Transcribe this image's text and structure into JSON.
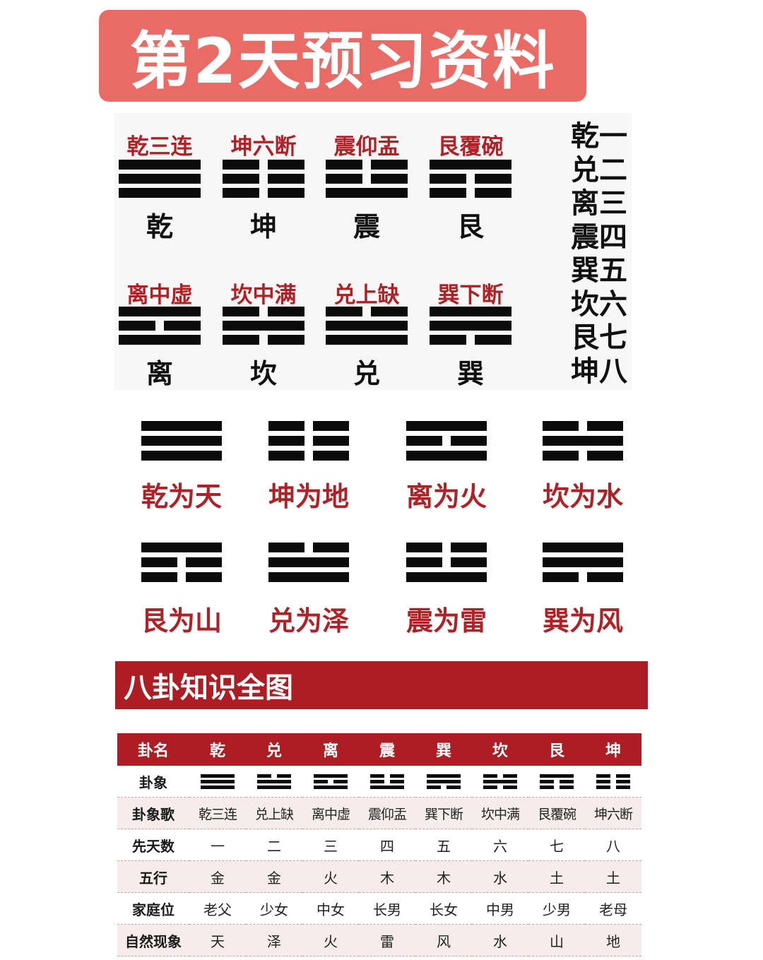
{
  "title": "第2天预习资料",
  "row1": [
    {
      "song": "乾三连",
      "name": "乾",
      "lines": [
        1,
        1,
        1
      ]
    },
    {
      "song": "坤六断",
      "name": "坤",
      "lines": [
        0,
        0,
        0
      ]
    },
    {
      "song": "震仰盂",
      "name": "震",
      "lines": [
        0,
        0,
        1
      ]
    },
    {
      "song": "艮覆碗",
      "name": "艮",
      "lines": [
        1,
        0,
        0
      ]
    }
  ],
  "row2": [
    {
      "song": "离中虚",
      "name": "离",
      "lines": [
        1,
        0,
        1
      ]
    },
    {
      "song": "坎中满",
      "name": "坎",
      "lines": [
        0,
        1,
        0
      ]
    },
    {
      "song": "兑上缺",
      "name": "兑",
      "lines": [
        0,
        1,
        1
      ]
    },
    {
      "song": "巽下断",
      "name": "巽",
      "lines": [
        1,
        1,
        0
      ]
    }
  ],
  "numbers": [
    "乾一",
    "兑二",
    "离三",
    "震四",
    "巽五",
    "坎六",
    "艮七",
    "坤八"
  ],
  "nature_row1": [
    {
      "label": "乾为天",
      "lines": [
        1,
        1,
        1
      ]
    },
    {
      "label": "坤为地",
      "lines": [
        0,
        0,
        0
      ]
    },
    {
      "label": "离为火",
      "lines": [
        1,
        0,
        1
      ]
    },
    {
      "label": "坎为水",
      "lines": [
        0,
        1,
        0
      ]
    }
  ],
  "nature_row2": [
    {
      "label": "艮为山",
      "lines": [
        1,
        0,
        0
      ]
    },
    {
      "label": "兑为泽",
      "lines": [
        0,
        1,
        1
      ]
    },
    {
      "label": "震为雷",
      "lines": [
        0,
        0,
        1
      ]
    },
    {
      "label": "巽为风",
      "lines": [
        1,
        1,
        0
      ]
    }
  ],
  "section_title": "八卦知识全图",
  "table": {
    "headers": [
      "卦名",
      "乾",
      "兑",
      "离",
      "震",
      "巽",
      "坎",
      "艮",
      "坤"
    ],
    "symbol_row": {
      "label": "卦象",
      "symbols": [
        [
          1,
          1,
          1
        ],
        [
          0,
          1,
          1
        ],
        [
          1,
          0,
          1
        ],
        [
          0,
          0,
          1
        ],
        [
          1,
          1,
          0
        ],
        [
          0,
          1,
          0
        ],
        [
          1,
          0,
          0
        ],
        [
          0,
          0,
          0
        ]
      ]
    },
    "rows": [
      {
        "label": "卦象歌",
        "cells": [
          "乾三连",
          "兑上缺",
          "离中虚",
          "震仰盂",
          "巽下断",
          "坎中满",
          "艮覆碗",
          "坤六断"
        ]
      },
      {
        "label": "先天数",
        "cells": [
          "一",
          "二",
          "三",
          "四",
          "五",
          "六",
          "七",
          "八"
        ]
      },
      {
        "label": "五行",
        "cells": [
          "金",
          "金",
          "火",
          "木",
          "木",
          "水",
          "土",
          "土"
        ]
      },
      {
        "label": "家庭位",
        "cells": [
          "老父",
          "少女",
          "中女",
          "长男",
          "长女",
          "中男",
          "少男",
          "老母"
        ]
      },
      {
        "label": "自然现象",
        "cells": [
          "天",
          "泽",
          "火",
          "雷",
          "风",
          "水",
          "山",
          "地"
        ]
      }
    ]
  }
}
